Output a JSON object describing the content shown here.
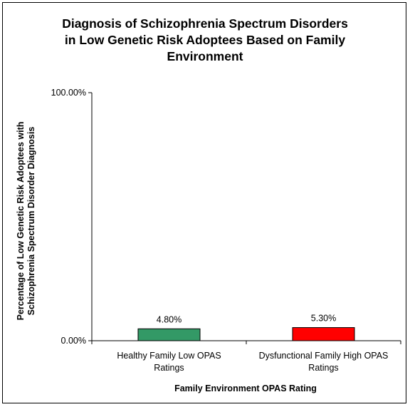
{
  "chart_data": {
    "type": "bar",
    "title_lines": [
      "Diagnosis of Schizophrenia Spectrum Disorders",
      "in Low Genetic Risk Adoptees Based on Family",
      "Environment"
    ],
    "xlabel": "Family Environment OPAS Rating",
    "ylabel_lines": [
      "Percentage of Low Genetic Risk Adoptees with",
      "Schizophrenia Spectrum Disorder Diagnosis"
    ],
    "ylim": [
      0,
      100
    ],
    "y_ticks": [
      {
        "value": 0,
        "label": "0.00%"
      },
      {
        "value": 100,
        "label": "100.00%"
      }
    ],
    "categories": [
      {
        "lines": [
          "Healthy Family Low OPAS",
          "Ratings"
        ]
      },
      {
        "lines": [
          "Dysfunctional Family High OPAS",
          "Ratings"
        ]
      }
    ],
    "values": [
      4.8,
      5.3
    ],
    "data_labels": [
      "4.80%",
      "5.30%"
    ],
    "bar_colors": [
      "#339966",
      "#ff0000"
    ],
    "grid": false,
    "legend": "none"
  }
}
